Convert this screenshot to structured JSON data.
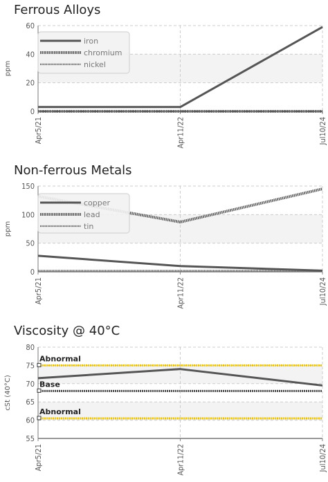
{
  "chart_data": [
    {
      "type": "line",
      "title": "Ferrous Alloys",
      "ylabel": "ppm",
      "ylim": [
        0,
        60
      ],
      "yticks": [
        0,
        20,
        40,
        60
      ],
      "categories": [
        "Apr5/21",
        "Apr11/22",
        "Jul10/24"
      ],
      "grid": true,
      "legend": "top-left",
      "series": [
        {
          "name": "iron",
          "values": [
            3,
            3,
            59
          ],
          "style": "solid"
        },
        {
          "name": "chromium",
          "values": [
            0,
            0,
            0
          ],
          "style": "dotted"
        },
        {
          "name": "nickel",
          "values": [
            0,
            0,
            0
          ],
          "style": "dotted-thin"
        }
      ]
    },
    {
      "type": "line",
      "title": "Non-ferrous Metals",
      "ylabel": "ppm",
      "ylim": [
        0,
        150
      ],
      "yticks": [
        0,
        50,
        100,
        150
      ],
      "categories": [
        "Apr5/21",
        "Apr11/22",
        "Jul10/24"
      ],
      "grid": true,
      "legend": "top-left",
      "series": [
        {
          "name": "copper",
          "values": [
            28,
            10,
            2
          ],
          "style": "solid"
        },
        {
          "name": "lead",
          "values": [
            132,
            87,
            145
          ],
          "style": "dotted"
        },
        {
          "name": "tin",
          "values": [
            2,
            2,
            2
          ],
          "style": "dotted-thin"
        }
      ]
    },
    {
      "type": "line",
      "title": "Viscosity @ 40°C",
      "ylabel": "cSt (40°C)",
      "ylim": [
        55,
        80
      ],
      "yticks": [
        55,
        60,
        65,
        70,
        75,
        80
      ],
      "categories": [
        "Apr5/21",
        "Apr11/22",
        "Jul10/24"
      ],
      "grid": true,
      "series": [
        {
          "values": [
            71.5,
            74,
            69.5
          ],
          "style": "solid"
        }
      ],
      "reference_lines": [
        {
          "label": "Abnormal",
          "value": 75,
          "color": "#f2c200"
        },
        {
          "label": "Base",
          "value": 68,
          "color": "#444444"
        },
        {
          "label": "Abnormal",
          "value": 60.5,
          "color": "#f2c200"
        }
      ]
    }
  ]
}
